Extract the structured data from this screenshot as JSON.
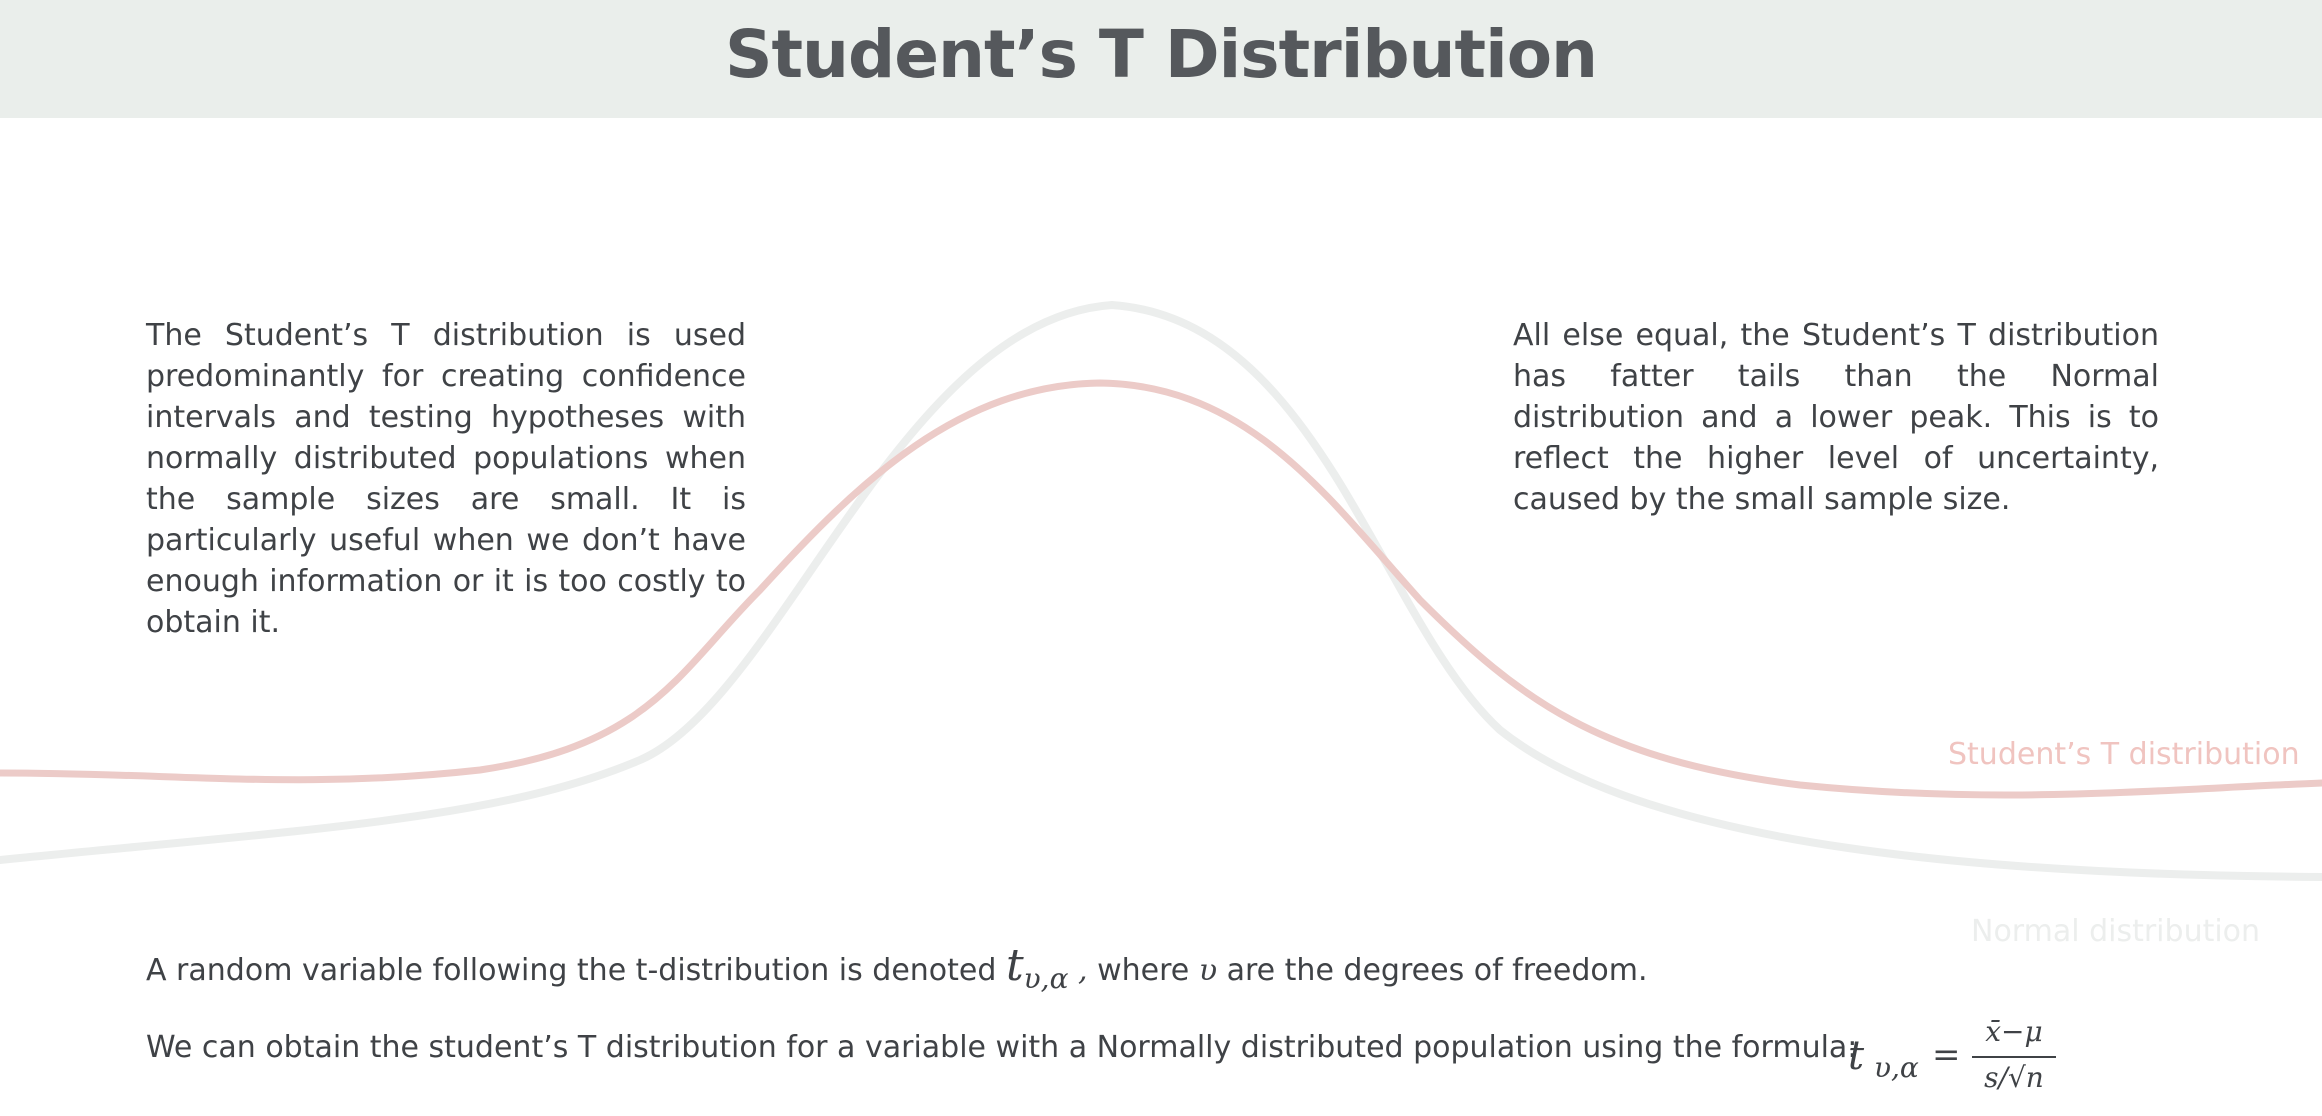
{
  "title": "Student’s T Distribution",
  "left_paragraph": "The Student’s T distribution is used predominantly for creating confidence intervals and testing hypotheses with normally distributed populations when the sample sizes are small. It is particularly useful when we don’t have enough information or it is too costly to obtain it.",
  "right_paragraph": "All else equal, the Student’s T distribution has fatter tails than the Normal distribution and a lower peak. This is to reflect the higher level of uncertainty, caused by the small sample size.",
  "labels": {
    "t_distribution": "Student’s T distribution",
    "normal_distribution": "Normal distribution"
  },
  "colors": {
    "header_bg": "#eaeeeb",
    "t_curve": "#eccbc8",
    "normal_curve": "#eceeed"
  },
  "line1": {
    "before": "A random variable following the t-distribution is denoted",
    "symbol": "t",
    "subscript": "υ,α",
    "comma": ",",
    "middle": "where",
    "nu": "υ",
    "after": "are the degrees of freedom."
  },
  "line2": {
    "text": "We can obtain the student’s T distribution for a variable with a Normally distributed population using the formula:"
  },
  "formula": {
    "t": "t",
    "subscript": "υ,α",
    "equals": "=",
    "numerator": "x̄−μ",
    "denominator": "s/√n"
  }
}
